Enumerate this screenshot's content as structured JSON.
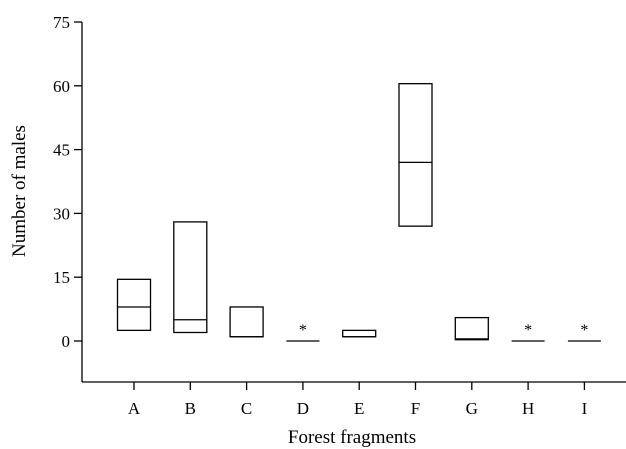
{
  "chart_data": {
    "type": "box",
    "xlabel": "Forest fragments",
    "ylabel": "Number of males",
    "yticks": [
      0,
      15,
      30,
      45,
      60,
      75
    ],
    "ylim": [
      -9,
      75
    ],
    "categories": [
      "A",
      "B",
      "C",
      "D",
      "E",
      "F",
      "G",
      "H",
      "I"
    ],
    "boxes": [
      {
        "category": "A",
        "low": 2.5,
        "median": 8,
        "high": 14.5,
        "marker": ""
      },
      {
        "category": "B",
        "low": 2,
        "median": 5,
        "high": 28,
        "marker": ""
      },
      {
        "category": "C",
        "low": 1,
        "median": 1,
        "high": 8,
        "marker": ""
      },
      {
        "category": "D",
        "low": 0,
        "median": 0,
        "high": 0,
        "marker": "*"
      },
      {
        "category": "E",
        "low": 1,
        "median": 1,
        "high": 2.5,
        "marker": ""
      },
      {
        "category": "F",
        "low": 27,
        "median": 42,
        "high": 60.5,
        "marker": ""
      },
      {
        "category": "G",
        "low": 0.3,
        "median": 0.5,
        "high": 5.5,
        "marker": ""
      },
      {
        "category": "H",
        "low": 0,
        "median": 0,
        "high": 0,
        "marker": "*"
      },
      {
        "category": "I",
        "low": 0,
        "median": 0,
        "high": 0,
        "marker": "*"
      }
    ]
  }
}
